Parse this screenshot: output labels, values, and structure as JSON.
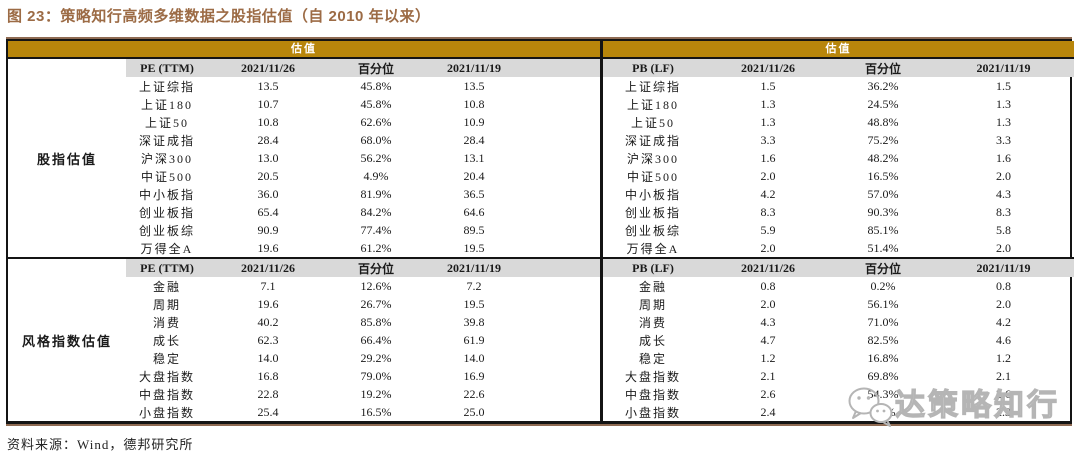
{
  "title": "图 23：策略知行高频多维数据之股指估值（自 2010 年以来）",
  "source_note": "资料来源：Wind，德邦研究所",
  "watermark": {
    "text": "达策略知行",
    "icon": "wechat-icon"
  },
  "colors": {
    "band_gold": "#b8860b",
    "header_gray": "#d9d9d9",
    "title_brown": "#9c6b45",
    "border_tan": "#8f6b53",
    "border_black": "#141414",
    "watermark_gray": "#b5b5b5"
  },
  "left_table": {
    "band_label": "估值",
    "groups": [
      {
        "group_label": "股指估值",
        "header": [
          "PE (TTM)",
          "2021/11/26",
          "百分位",
          "2021/11/19"
        ],
        "rows": [
          [
            "上证综指",
            "13.5",
            "45.8%",
            "13.5"
          ],
          [
            "上证180",
            "10.7",
            "45.8%",
            "10.8"
          ],
          [
            "上证50",
            "10.8",
            "62.6%",
            "10.9"
          ],
          [
            "深证成指",
            "28.4",
            "68.0%",
            "28.4"
          ],
          [
            "沪深300",
            "13.0",
            "56.2%",
            "13.1"
          ],
          [
            "中证500",
            "20.5",
            "4.9%",
            "20.4"
          ],
          [
            "中小板指",
            "36.0",
            "81.9%",
            "36.5"
          ],
          [
            "创业板指",
            "65.4",
            "84.2%",
            "64.6"
          ],
          [
            "创业板综",
            "90.9",
            "77.4%",
            "89.5"
          ],
          [
            "万得全A",
            "19.6",
            "61.2%",
            "19.5"
          ]
        ]
      },
      {
        "group_label": "风格指数估值",
        "header": [
          "PE (TTM)",
          "2021/11/26",
          "百分位",
          "2021/11/19"
        ],
        "rows": [
          [
            "金融",
            "7.1",
            "12.6%",
            "7.2"
          ],
          [
            "周期",
            "19.6",
            "26.7%",
            "19.5"
          ],
          [
            "消费",
            "40.2",
            "85.8%",
            "39.8"
          ],
          [
            "成长",
            "62.3",
            "66.4%",
            "61.9"
          ],
          [
            "稳定",
            "14.0",
            "29.2%",
            "14.0"
          ],
          [
            "大盘指数",
            "16.8",
            "79.0%",
            "16.9"
          ],
          [
            "中盘指数",
            "22.8",
            "19.2%",
            "22.6"
          ],
          [
            "小盘指数",
            "25.4",
            "16.5%",
            "25.0"
          ]
        ]
      }
    ]
  },
  "right_table": {
    "band_label": "估值",
    "groups": [
      {
        "group_label": "",
        "header": [
          "PB (LF)",
          "2021/11/26",
          "百分位",
          "2021/11/19"
        ],
        "rows": [
          [
            "上证综指",
            "1.5",
            "36.2%",
            "1.5"
          ],
          [
            "上证180",
            "1.3",
            "24.5%",
            "1.3"
          ],
          [
            "上证50",
            "1.3",
            "48.8%",
            "1.3"
          ],
          [
            "深证成指",
            "3.3",
            "75.2%",
            "3.3"
          ],
          [
            "沪深300",
            "1.6",
            "48.2%",
            "1.6"
          ],
          [
            "中证500",
            "2.0",
            "16.5%",
            "2.0"
          ],
          [
            "中小板指",
            "4.2",
            "57.0%",
            "4.3"
          ],
          [
            "创业板指",
            "8.3",
            "90.3%",
            "8.3"
          ],
          [
            "创业板综",
            "5.9",
            "85.1%",
            "5.8"
          ],
          [
            "万得全A",
            "2.0",
            "51.4%",
            "2.0"
          ]
        ]
      },
      {
        "group_label": "",
        "header": [
          "PB (LF)",
          "2021/11/26",
          "百分位",
          "2021/11/19"
        ],
        "rows": [
          [
            "金融",
            "0.8",
            "0.2%",
            "0.8"
          ],
          [
            "周期",
            "2.0",
            "56.1%",
            "2.0"
          ],
          [
            "消费",
            "4.3",
            "71.0%",
            "4.2"
          ],
          [
            "成长",
            "4.7",
            "82.5%",
            "4.6"
          ],
          [
            "稳定",
            "1.2",
            "16.8%",
            "1.2"
          ],
          [
            "大盘指数",
            "2.1",
            "69.8%",
            "2.1"
          ],
          [
            "中盘指数",
            "2.6",
            "54.3%",
            "2.6"
          ],
          [
            "小盘指数",
            "2.4",
            "2.4%",
            "2.3"
          ]
        ]
      }
    ]
  }
}
